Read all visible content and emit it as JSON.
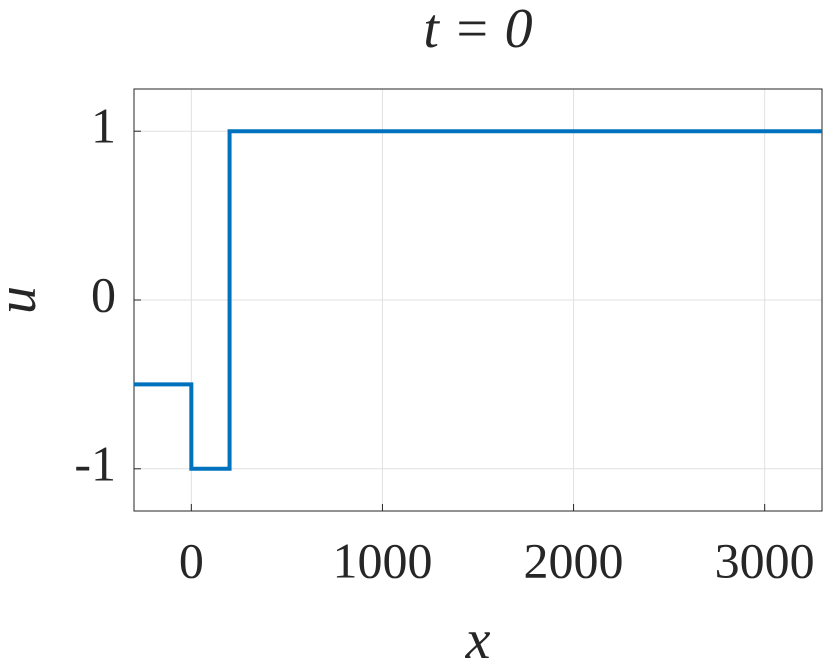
{
  "chart_data": {
    "type": "line",
    "title": "t = 0",
    "x_label": "x",
    "y_label": "u",
    "x": [
      -300,
      0,
      0,
      200,
      200,
      3300
    ],
    "series": [
      {
        "color": "#0072bd",
        "values": [
          -0.5,
          -0.5,
          -1,
          -1,
          1,
          1
        ]
      }
    ],
    "xlim": [
      -300,
      3300
    ],
    "xticks": [
      0,
      1000,
      2000,
      3000
    ],
    "ylim": [
      -1.25,
      1.25
    ],
    "yticks": [
      -1,
      0,
      1
    ],
    "grid": true
  }
}
